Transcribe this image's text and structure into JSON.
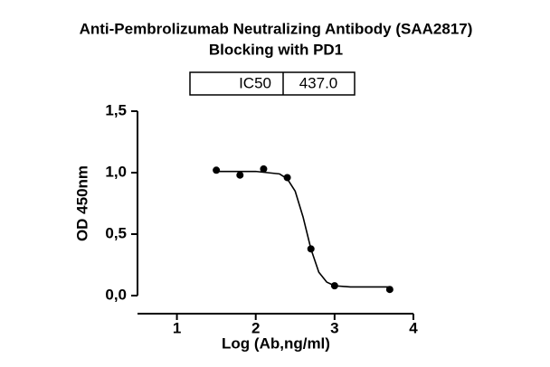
{
  "chart_data": {
    "type": "scatter",
    "title": [
      "Anti-Pembrolizumab Neutralizing Antibody (SAA2817)",
      "Blocking with PD1"
    ],
    "table": {
      "label": "IC50",
      "value": "437.0"
    },
    "x_label": "Log (Ab,ng/ml)",
    "y_label": "OD 450nm",
    "xlim": [
      0.5,
      4
    ],
    "xticks": [
      1,
      2,
      3,
      4
    ],
    "ylim": [
      0,
      1.5
    ],
    "yticks": [
      {
        "value": 0,
        "label": "0,0"
      },
      {
        "value": 0.5,
        "label": "0,5"
      },
      {
        "value": 1,
        "label": "1,0"
      },
      {
        "value": 1.5,
        "label": "1,5"
      }
    ],
    "series": [
      {
        "name": "data",
        "color": "#000000",
        "x": [
          1.5,
          1.8,
          2.1,
          2.4,
          2.7,
          3.0,
          3.7
        ],
        "values": [
          1.02,
          0.98,
          1.03,
          0.96,
          0.38,
          0.08,
          0.05
        ]
      },
      {
        "name": "fit",
        "color": "#000000",
        "x": [
          1.5,
          2.0,
          2.3,
          2.4,
          2.5,
          2.6,
          2.7,
          2.8,
          2.9,
          3.0,
          3.2,
          3.7
        ],
        "values": [
          1.01,
          1.01,
          0.99,
          0.95,
          0.85,
          0.64,
          0.38,
          0.19,
          0.11,
          0.08,
          0.07,
          0.07
        ]
      }
    ]
  }
}
